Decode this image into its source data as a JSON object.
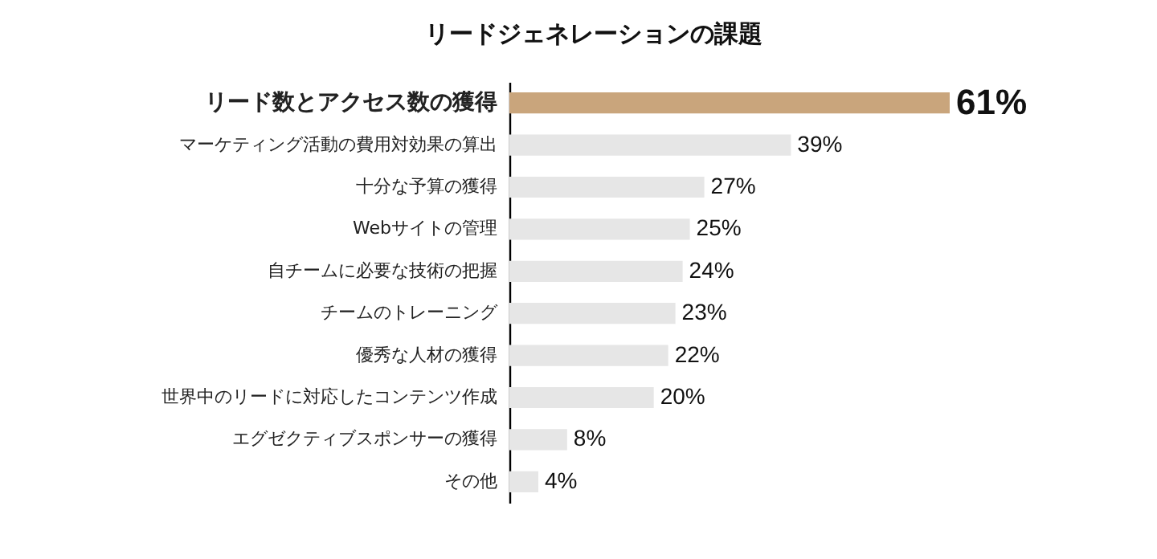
{
  "chart_data": {
    "type": "bar",
    "orientation": "horizontal",
    "title": "リードジェネレーションの課題",
    "categories": [
      "リード数とアクセス数の獲得",
      "マーケティング活動の費用対効果の算出",
      "十分な予算の獲得",
      "Webサイトの管理",
      "自チームに必要な技術の把握",
      "チームのトレーニング",
      "優秀な人材の獲得",
      "世界中のリードに対応したコンテンツ作成",
      "エグゼクティブスポンサーの獲得",
      "その他"
    ],
    "values": [
      61,
      39,
      27,
      25,
      24,
      23,
      22,
      20,
      8,
      4
    ],
    "colors": [
      "#c9a57c",
      "#e6e6e6",
      "#e6e6e6",
      "#e6e6e6",
      "#e6e6e6",
      "#e6e6e6",
      "#e6e6e6",
      "#e6e6e6",
      "#e6e6e6",
      "#e6e6e6"
    ],
    "value_labels": [
      "61%",
      "39%",
      "27%",
      "25%",
      "24%",
      "23%",
      "22%",
      "20%",
      "8%",
      "4%"
    ]
  }
}
